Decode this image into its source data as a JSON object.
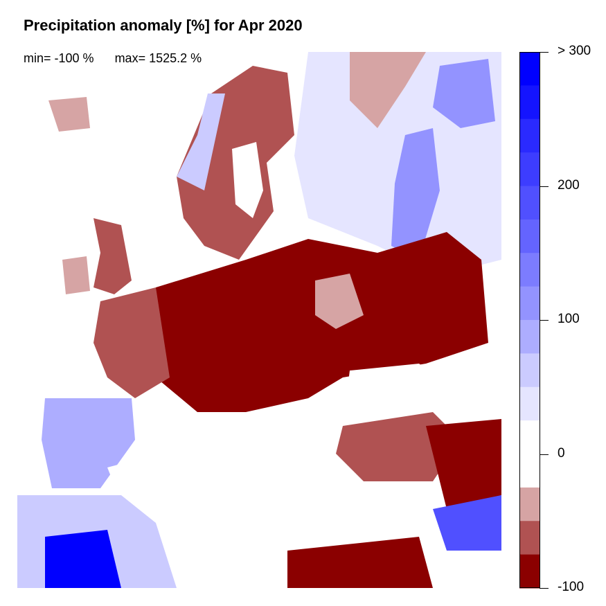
{
  "title": "Precipitation anomaly [%] for Apr 2020",
  "stats": {
    "min": "min= -100 %",
    "max": "max= 1525.2 %"
  },
  "legend": {
    "colors": [
      "#0000ff",
      "#1414ff",
      "#2a2aff",
      "#3d3dff",
      "#5050ff",
      "#6464ff",
      "#7c7cff",
      "#9393ff",
      "#adadff",
      "#cbcbff",
      "#e5e5ff",
      "#ffffff",
      "#ffffff",
      "#d6a4a4",
      "#b05252",
      "#8b0000"
    ],
    "ticks": [
      {
        "value": 300,
        "label": "> 300"
      },
      {
        "value": 200,
        "label": "200"
      },
      {
        "value": 100,
        "label": "100"
      },
      {
        "value": 0,
        "label": "0"
      },
      {
        "value": -100,
        "label": "-100"
      }
    ]
  }
}
